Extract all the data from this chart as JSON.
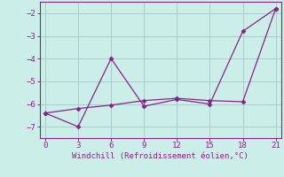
{
  "line1_x": [
    0,
    3,
    6,
    9,
    12,
    15,
    18,
    21
  ],
  "line1_y": [
    -6.4,
    -7.0,
    -4.0,
    -6.1,
    -5.8,
    -6.0,
    -2.8,
    -1.8
  ],
  "line2_x": [
    0,
    3,
    6,
    9,
    12,
    15,
    18,
    21
  ],
  "line2_y": [
    -6.4,
    -6.2,
    -6.05,
    -5.85,
    -5.75,
    -5.85,
    -5.9,
    -1.8
  ],
  "line_color": "#882288",
  "marker": "D",
  "marker_size": 2.5,
  "xlabel": "Windchill (Refroidissement éolien,°C)",
  "xlim": [
    -0.5,
    21.5
  ],
  "ylim": [
    -7.5,
    -1.5
  ],
  "xticks": [
    0,
    3,
    6,
    9,
    12,
    15,
    18,
    21
  ],
  "yticks": [
    -7,
    -6,
    -5,
    -4,
    -3,
    -2
  ],
  "bg_color": "#cceee8",
  "grid_color": "#aacccc",
  "label_fontsize": 6.5
}
